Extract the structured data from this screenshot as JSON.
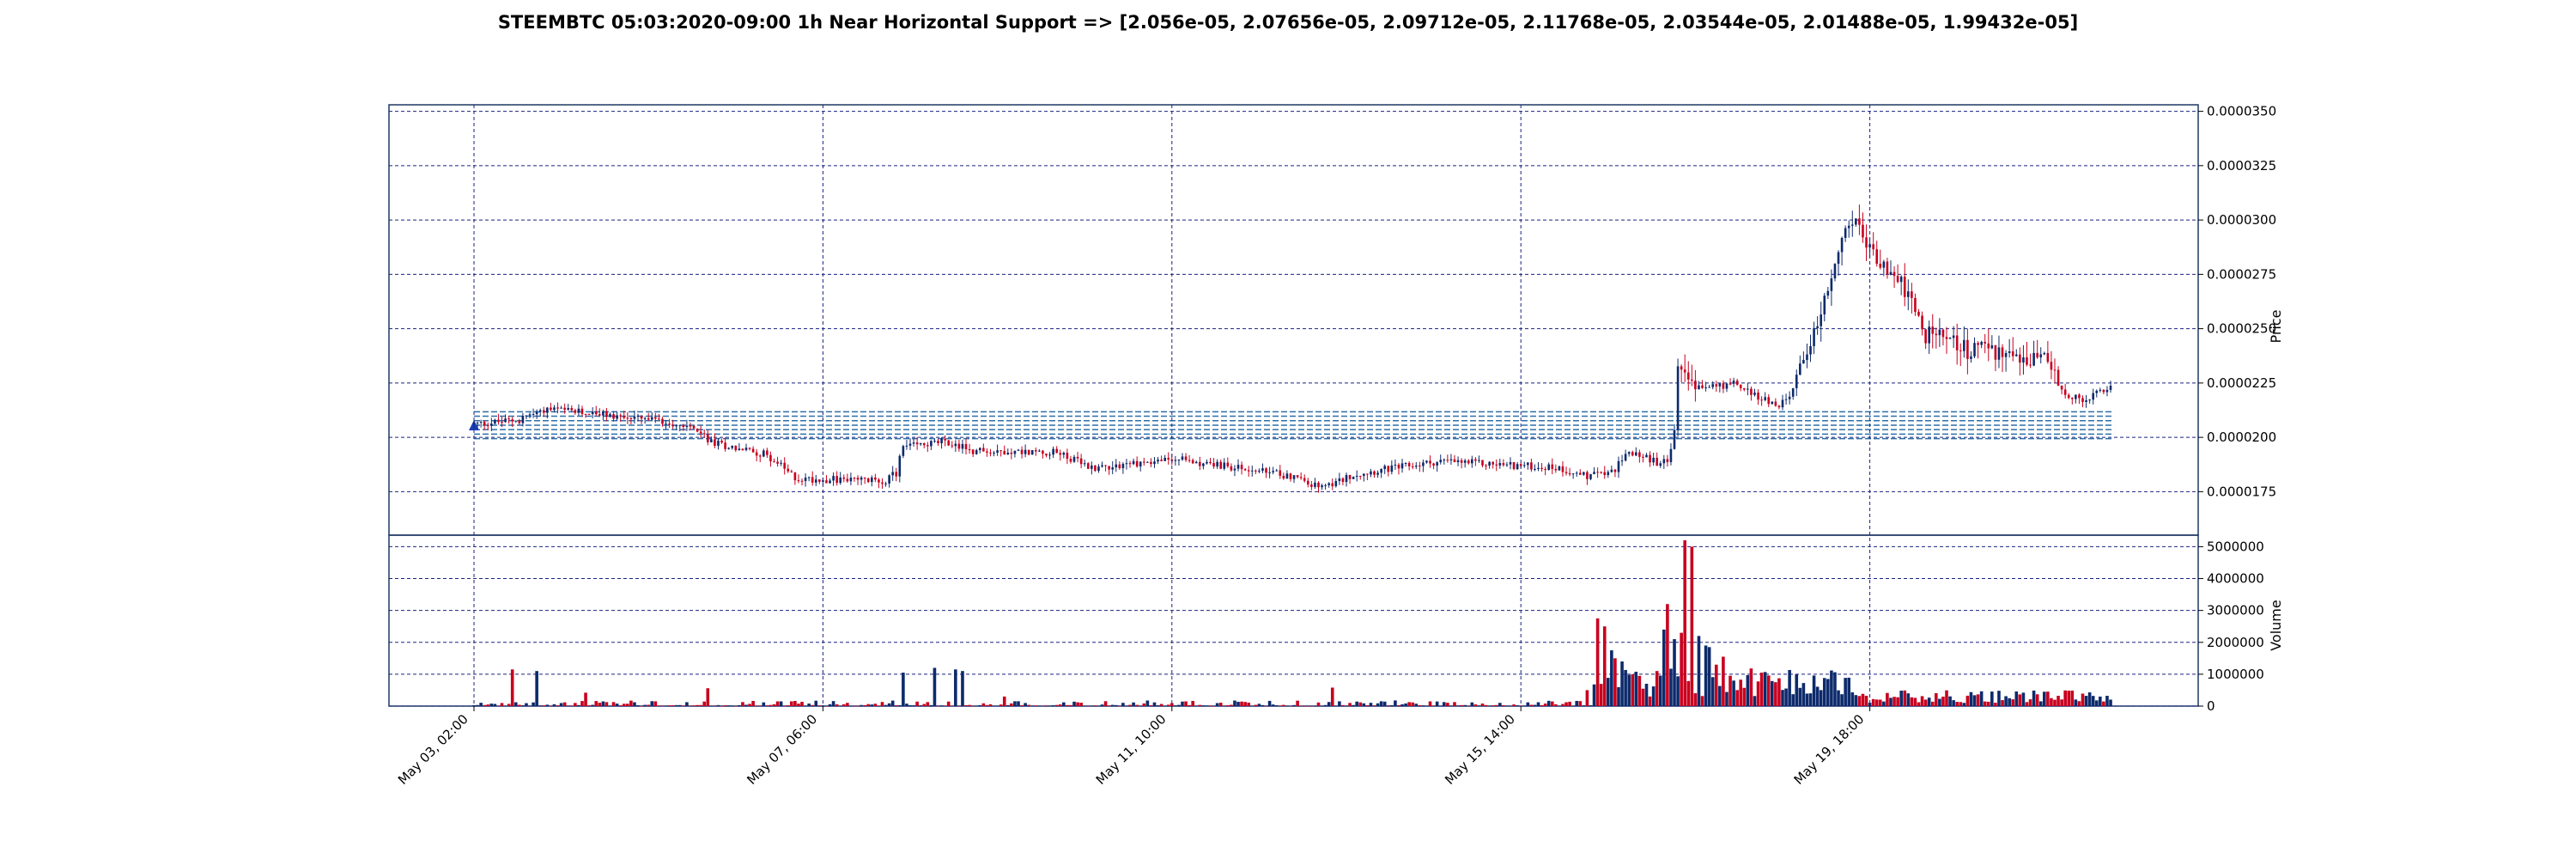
{
  "colors": {
    "up": "#0d2a6b",
    "down": "#c8001e",
    "grid": "#1a237e",
    "support": "#2f6fa8",
    "frame": "#1f3864",
    "marker": "#1a3fb8"
  },
  "chart_data": {
    "type": "candlestick",
    "title": "STEEMBTC 05:03:2020-09:00 1h Near Horizontal Support => [2.056e-05, 2.07656e-05, 2.09712e-05, 2.11768e-05, 2.03544e-05, 2.01488e-05, 1.99432e-05]",
    "price_axis": {
      "label": "Price",
      "ylim": [
        1.55e-05,
        3.53e-05
      ],
      "ticks": [
        "0.0000175",
        "0.0000200",
        "0.0000225",
        "0.0000250",
        "0.0000275",
        "0.0000300",
        "0.0000325",
        "0.0000350"
      ],
      "tick_values": [
        1.75e-05,
        2e-05,
        2.25e-05,
        2.5e-05,
        2.75e-05,
        3e-05,
        3.25e-05,
        3.5e-05
      ]
    },
    "volume_axis": {
      "label": "Volume",
      "ylim": [
        0,
        5200000
      ],
      "ticks": [
        "0",
        "1000000",
        "2000000",
        "3000000",
        "4000000",
        "5000000"
      ],
      "tick_values": [
        0,
        1000000,
        2000000,
        3000000,
        4000000,
        5000000
      ]
    },
    "x_ticks": [
      {
        "label": "May 03, 02:00",
        "hour": 0
      },
      {
        "label": "May 07, 06:00",
        "hour": 100
      },
      {
        "label": "May 11, 10:00",
        "hour": 200
      },
      {
        "label": "May 15, 14:00",
        "hour": 300
      },
      {
        "label": "May 19, 18:00",
        "hour": 400
      }
    ],
    "grid": true,
    "support_levels": [
      2.056e-05,
      2.07656e-05,
      2.09712e-05,
      2.11768e-05,
      2.03544e-05,
      2.01488e-05,
      1.99432e-05
    ],
    "candles_hours": 470,
    "price_path": [
      [
        0,
        2.06e-05
      ],
      [
        15,
        2.08e-05
      ],
      [
        25,
        2.13e-05
      ],
      [
        40,
        2.11e-05
      ],
      [
        60,
        2.08e-05
      ],
      [
        75,
        2.05e-05
      ],
      [
        80,
        1.98e-05
      ],
      [
        100,
        1.92e-05
      ],
      [
        110,
        1.81e-05
      ],
      [
        140,
        1.8e-05
      ],
      [
        145,
        1.84e-05
      ],
      [
        145.5,
        1.95e-05
      ],
      [
        160,
        1.98e-05
      ],
      [
        170,
        1.94e-05
      ],
      [
        200,
        1.93e-05
      ],
      [
        210,
        1.86e-05
      ],
      [
        240,
        1.9e-05
      ],
      [
        260,
        1.86e-05
      ],
      [
        280,
        1.82e-05
      ],
      [
        290,
        1.76e-05
      ],
      [
        300,
        1.83e-05
      ],
      [
        330,
        1.89e-05
      ],
      [
        370,
        1.86e-05
      ],
      [
        380,
        1.82e-05
      ],
      [
        390,
        1.85e-05
      ],
      [
        393,
        1.94e-05
      ],
      [
        405,
        1.88e-05
      ],
      [
        408,
        1.9e-05
      ],
      [
        410,
        2.03e-05
      ],
      [
        411,
        2.35e-05
      ],
      [
        420,
        2.22e-05
      ],
      [
        430,
        2.25e-05
      ],
      [
        445,
        2.14e-05
      ],
      [
        450,
        2.2e-05
      ],
      [
        455,
        2.4e-05
      ],
      [
        460,
        2.6e-05
      ],
      [
        470,
        3e-05
      ],
      [
        478,
        2.85e-05
      ],
      [
        488,
        2.7e-05
      ],
      [
        495,
        2.48e-05
      ],
      [
        510,
        2.4e-05
      ],
      [
        535,
        2.37e-05
      ],
      [
        542,
        2.22e-05
      ],
      [
        548,
        2.17e-05
      ],
      [
        560,
        2.23e-05
      ]
    ],
    "volume_spikes": [
      [
        13,
        1150000
      ],
      [
        21,
        1100000
      ],
      [
        38,
        420000
      ],
      [
        80,
        560000
      ],
      [
        146,
        1050000
      ],
      [
        157,
        1200000
      ],
      [
        165,
        1150000
      ],
      [
        167,
        1100000
      ],
      [
        181,
        300000
      ],
      [
        293,
        580000
      ],
      [
        380,
        500000
      ],
      [
        384,
        2750000
      ],
      [
        386,
        2500000
      ],
      [
        388,
        1750000
      ],
      [
        390,
        1500000
      ],
      [
        392,
        1400000
      ],
      [
        396,
        1000000
      ],
      [
        400,
        700000
      ],
      [
        404,
        1100000
      ],
      [
        406,
        2400000
      ],
      [
        408,
        3200000
      ],
      [
        410,
        2100000
      ],
      [
        412,
        2300000
      ],
      [
        414,
        5200000
      ],
      [
        416,
        5000000
      ],
      [
        418,
        2200000
      ],
      [
        420,
        1900000
      ],
      [
        422,
        1850000
      ],
      [
        424,
        1300000
      ],
      [
        426,
        1550000
      ],
      [
        430,
        800000
      ],
      [
        440,
        1050000
      ],
      [
        444,
        750000
      ],
      [
        456,
        400000
      ],
      [
        462,
        850000
      ]
    ]
  }
}
